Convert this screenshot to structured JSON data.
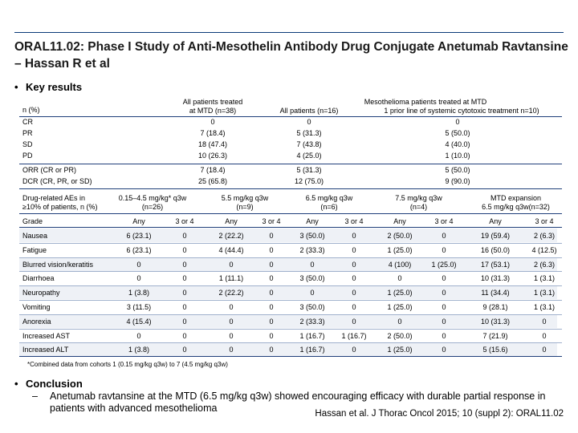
{
  "title": "ORAL11.02: Phase I Study of Anti-Mesothelin Antibody Drug Conjugate Anetumab Ravtansine – Hassan R et al",
  "bullet_key_results": "Key results",
  "table1": {
    "row_label_header": "n (%)",
    "col1_header_line1": "All patients treated",
    "col1_header_line2": "at MTD (n=38)",
    "meso_header": "Mesothelioma patients treated at MTD",
    "col2_header": "All patients (n=16)",
    "col3_header": "1 prior line of systemic cytotoxic treatment n=10)",
    "rows": [
      {
        "label": "CR",
        "c1": "0",
        "c2": "0",
        "c3": "0"
      },
      {
        "label": "PR",
        "c1": "7 (18.4)",
        "c2": "5 (31.3)",
        "c3": "5 (50.0)"
      },
      {
        "label": "SD",
        "c1": "18 (47.4)",
        "c2": "7 (43.8)",
        "c3": "4 (40.0)"
      },
      {
        "label": "PD",
        "c1": "10 (26.3)",
        "c2": "4 (25.0)",
        "c3": "1 (10.0)"
      },
      {
        "label": "ORR (CR or PR)",
        "c1": "7 (18.4)",
        "c2": "5 (31.3)",
        "c3": "5 (50.0)"
      },
      {
        "label": "DCR (CR, PR, or SD)",
        "c1": "25 (65.8)",
        "c2": "12 (75.0)",
        "c3": "9 (90.0)"
      }
    ]
  },
  "table2": {
    "header_label_line1": "Drug-related AEs in",
    "header_label_line2": "≥10% of patients, n (%)",
    "groups": [
      {
        "line1": "0.15–4.5 mg/kg* q3w",
        "line2": "(n=26)"
      },
      {
        "line1": "5.5 mg/kg q3w",
        "line2": "(n=9)"
      },
      {
        "line1": "6.5 mg/kg q3w",
        "line2": "(n=6)"
      },
      {
        "line1": "7.5 mg/kg q3w",
        "line2": "(n=4)"
      },
      {
        "line1": "MTD expansion",
        "line2": "6.5 mg/kg q3w(n=32)"
      }
    ],
    "grade_label": "Grade",
    "any_label": "Any",
    "g34_label": "3 or 4",
    "rows": [
      {
        "label": "Nausea",
        "v": [
          "6 (23.1)",
          "0",
          "2 (22.2)",
          "0",
          "3 (50.0)",
          "0",
          "2 (50.0)",
          "0",
          "19 (59.4)",
          "2 (6.3)"
        ]
      },
      {
        "label": "Fatigue",
        "v": [
          "6 (23.1)",
          "0",
          "4 (44.4)",
          "0",
          "2 (33.3)",
          "0",
          "1 (25.0)",
          "0",
          "16 (50.0)",
          "4 (12.5)"
        ]
      },
      {
        "label": "Blurred vision/keratitis",
        "v": [
          "0",
          "0",
          "0",
          "0",
          "0",
          "0",
          "4 (100)",
          "1 (25.0)",
          "17 (53.1)",
          "2 (6.3)"
        ]
      },
      {
        "label": "Diarrhoea",
        "v": [
          "0",
          "0",
          "1 (11.1)",
          "0",
          "3 (50.0)",
          "0",
          "0",
          "0",
          "10 (31.3)",
          "1 (3.1)"
        ]
      },
      {
        "label": "Neuropathy",
        "v": [
          "1 (3.8)",
          "0",
          "2 (22.2)",
          "0",
          "0",
          "0",
          "1 (25.0)",
          "0",
          "11 (34.4)",
          "1 (3.1)"
        ]
      },
      {
        "label": "Vomiting",
        "v": [
          "3 (11.5)",
          "0",
          "0",
          "0",
          "3 (50.0)",
          "0",
          "1 (25.0)",
          "0",
          "9 (28.1)",
          "1 (3.1)"
        ]
      },
      {
        "label": "Anorexia",
        "v": [
          "4 (15.4)",
          "0",
          "0",
          "0",
          "2 (33.3)",
          "0",
          "0",
          "0",
          "10 (31.3)",
          "0"
        ]
      },
      {
        "label": "Increased AST",
        "v": [
          "0",
          "0",
          "0",
          "0",
          "1 (16.7)",
          "1 (16.7)",
          "2 (50.0)",
          "0",
          "7 (21.9)",
          "0"
        ]
      },
      {
        "label": "Increased ALT",
        "v": [
          "1 (3.8)",
          "0",
          "0",
          "0",
          "1 (16.7)",
          "0",
          "1 (25.0)",
          "0",
          "5 (15.6)",
          "0"
        ]
      }
    ]
  },
  "footnote": "*Combined data from cohorts 1 (0.15 mg/kg q3w) to 7 (4.5 mg/kg q3w)",
  "bullet_conclusion": "Conclusion",
  "conclusion_dash": "–",
  "conclusion_text": "Anetumab ravtansine at the MTD (6.5 mg/kg q3w) showed encouraging efficacy with durable partial response in patients with advanced mesothelioma",
  "reference": "Hassan et al. J Thorac Oncol 2015; 10 (suppl 2): ORAL11.02",
  "bullet_char": "•"
}
